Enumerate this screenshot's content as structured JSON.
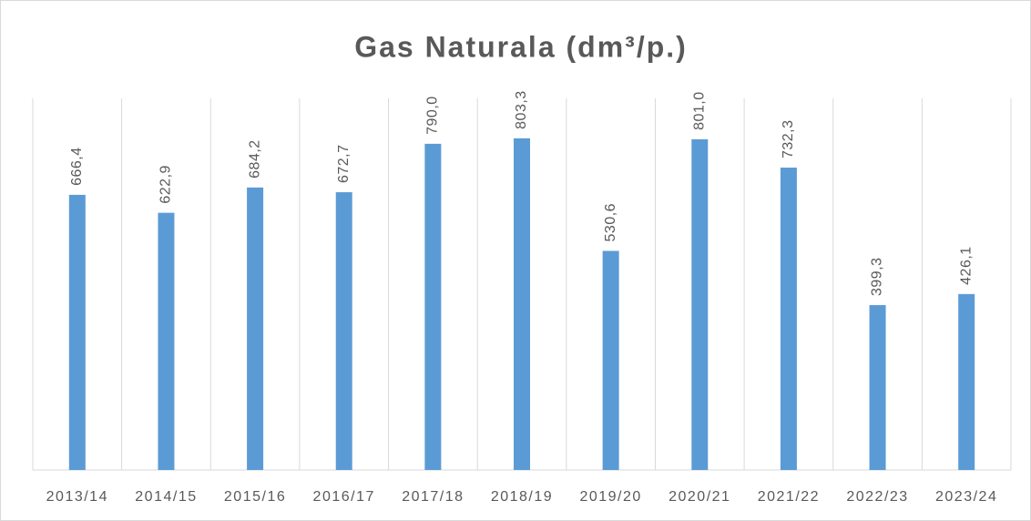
{
  "chart_data": {
    "type": "bar",
    "title": "Gas Naturala (dm³/p.)",
    "categories": [
      "2013/14",
      "2014/15",
      "2015/16",
      "2016/17",
      "2017/18",
      "2018/19",
      "2019/20",
      "2020/21",
      "2021/22",
      "2022/23",
      "2023/24"
    ],
    "values": [
      666.4,
      622.9,
      684.2,
      672.7,
      790.0,
      803.3,
      530.6,
      801.0,
      732.3,
      399.3,
      426.1
    ],
    "value_labels": [
      "666,4",
      "622,9",
      "684,2",
      "672,7",
      "790,0",
      "803,3",
      "530,6",
      "801,0",
      "732,3",
      "399,3",
      "426,1"
    ],
    "color": "#5b9bd5",
    "ylim": [
      0,
      900
    ]
  }
}
